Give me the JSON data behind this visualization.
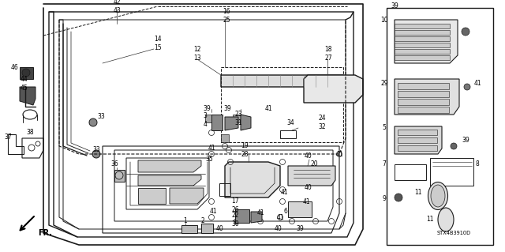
{
  "background_color": "#ffffff",
  "diagram_code": "STX4B3910D",
  "fig_width": 6.4,
  "fig_height": 3.19,
  "dpi": 100
}
